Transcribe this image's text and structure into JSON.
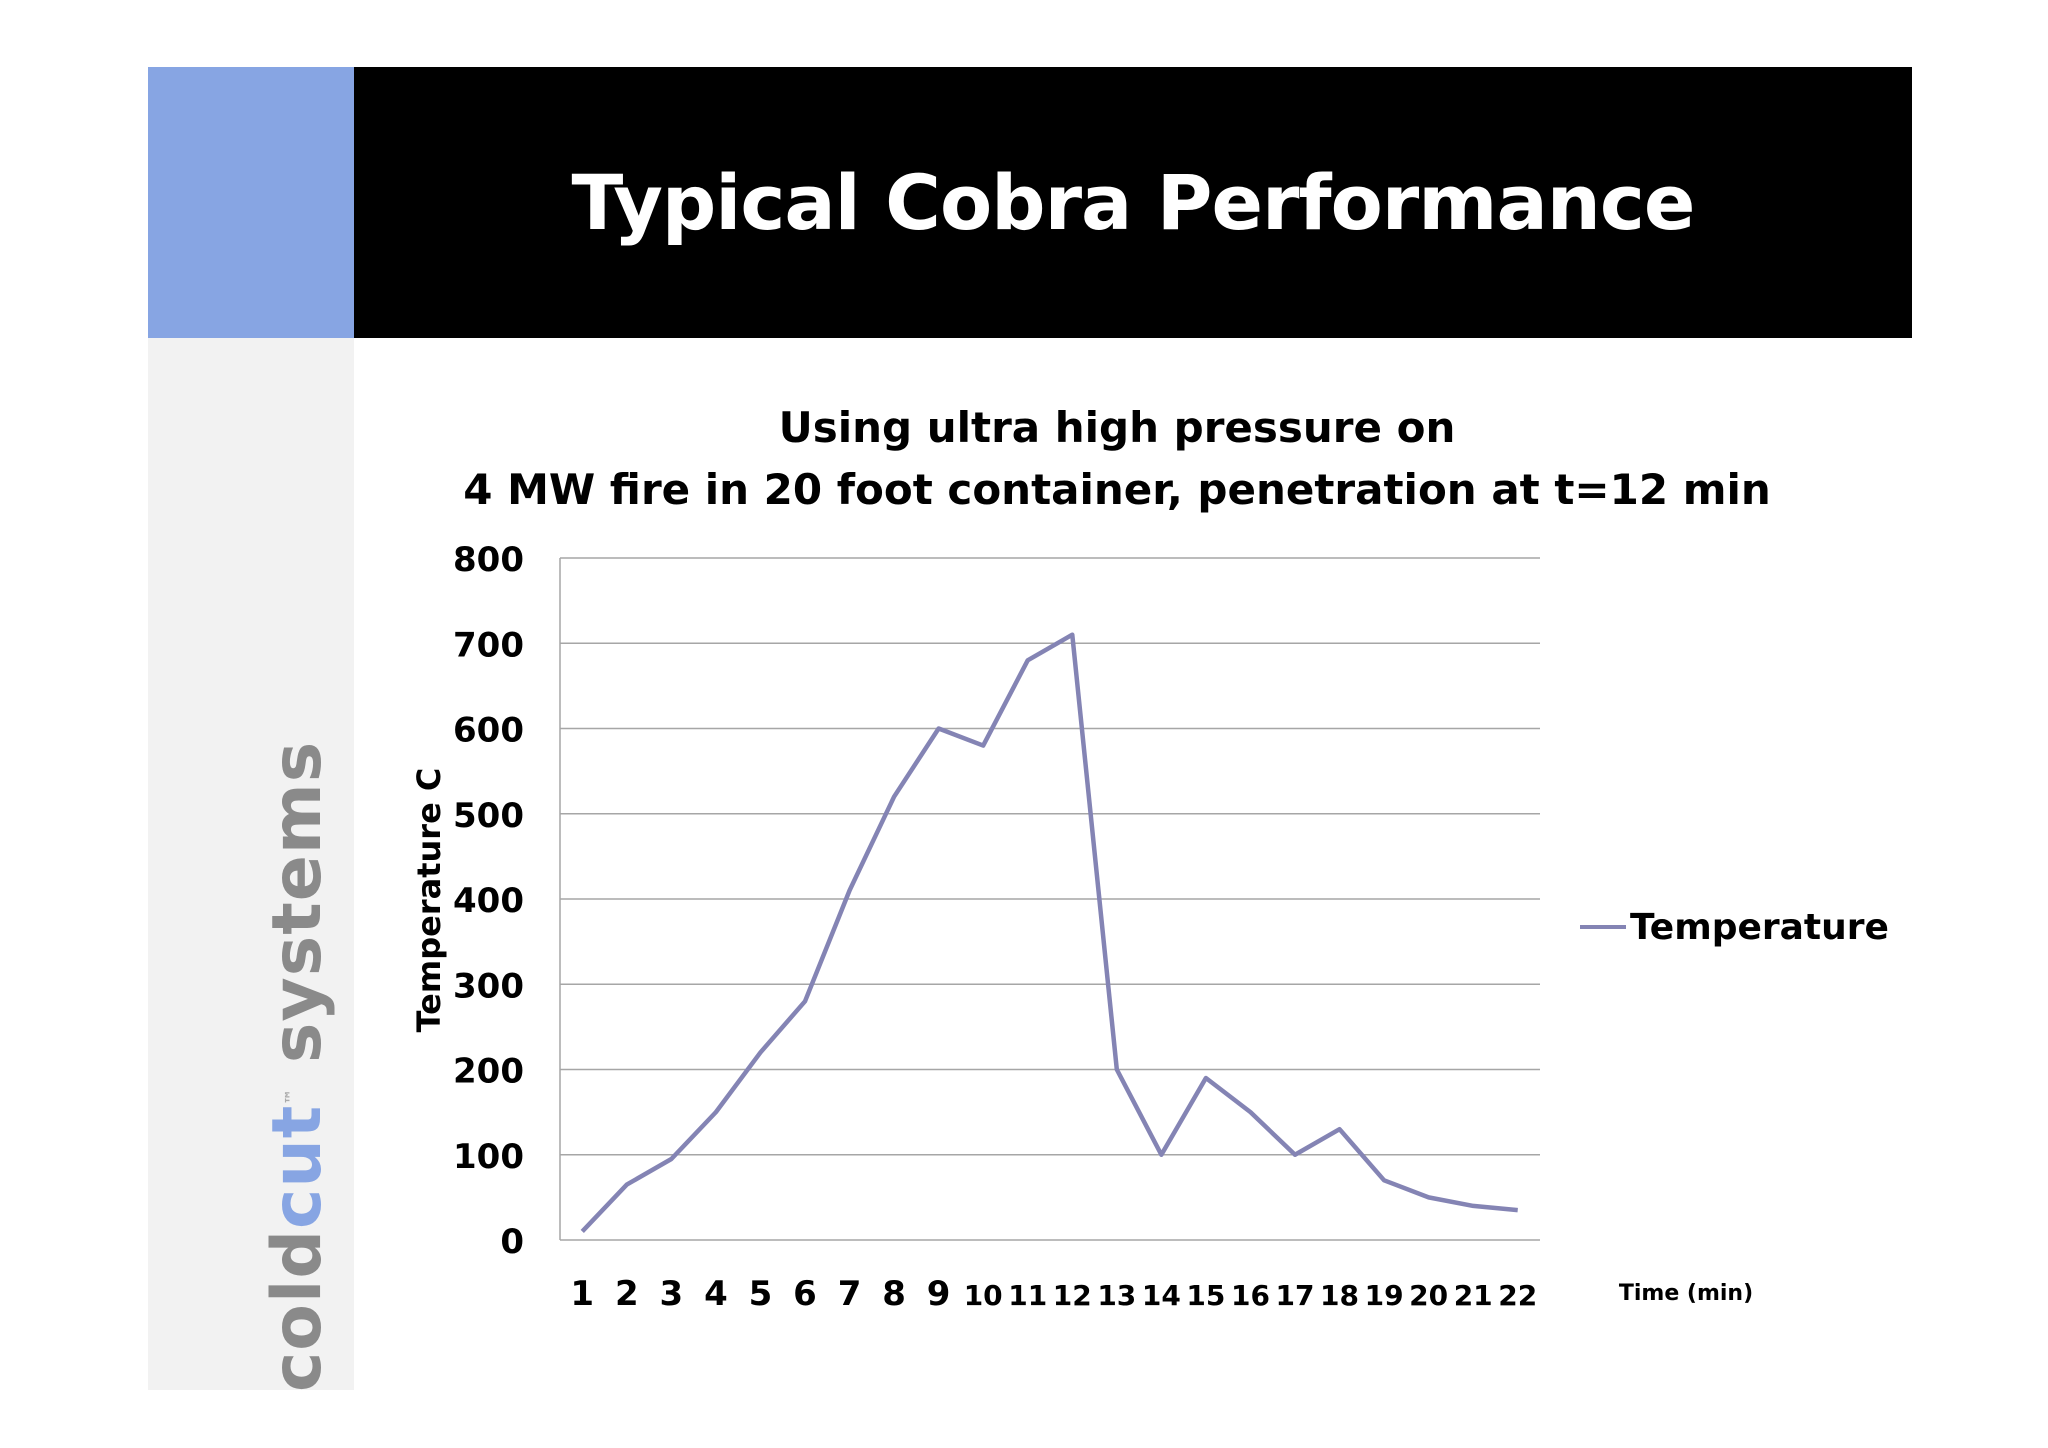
{
  "slide": {
    "title": "Typical Cobra Performance"
  },
  "logo": {
    "part1": "cold",
    "part2": "cut",
    "part3": "systems",
    "tm": "™"
  },
  "colors": {
    "accent": "#87a5e3",
    "line": "#8484b4",
    "grid": "#a6a6a6"
  },
  "chart_data": {
    "type": "line",
    "title_line1": "Using ultra high pressure on",
    "title_line2": "4 MW fire in 20 foot container, penetration at t=12 min",
    "xlabel": "Time (min)",
    "ylabel": "Temperature C",
    "ylim": [
      0,
      800
    ],
    "yticks": [
      0,
      100,
      200,
      300,
      400,
      500,
      600,
      700,
      800
    ],
    "grid": true,
    "legend_position": "right",
    "categories": [
      "1",
      "2",
      "3",
      "4",
      "5",
      "6",
      "7",
      "8",
      "9",
      "10",
      "11",
      "12",
      "13",
      "14",
      "15",
      "16",
      "17",
      "18",
      "19",
      "20",
      "21",
      "22"
    ],
    "series": [
      {
        "name": "Temperature",
        "values": [
          10,
          65,
          95,
          150,
          220,
          280,
          410,
          520,
          600,
          580,
          680,
          710,
          200,
          100,
          190,
          150,
          100,
          130,
          70,
          50,
          40,
          35
        ]
      }
    ]
  }
}
